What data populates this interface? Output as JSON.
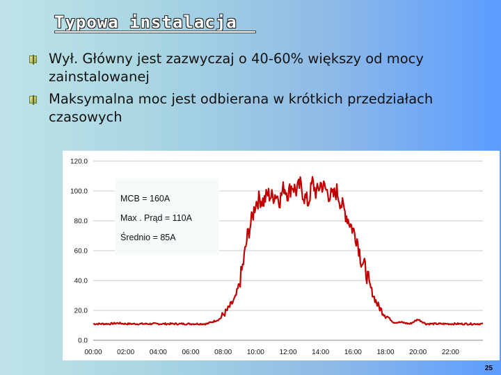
{
  "slide": {
    "title": "Typowa instalacja",
    "bullets": [
      "Wył. Główny jest zazwyczaj o 40-60% większy od mocy zainstalowanej",
      "Maksymalna moc jest odbierana w krótkich przedziałach czasowych"
    ],
    "page_number": "25"
  },
  "chart_data": {
    "type": "line",
    "title": "",
    "xlabel": "",
    "ylabel": "",
    "x_tick_labels": [
      "00:00",
      "02:00",
      "04:00",
      "06:00",
      "08:00",
      "10:00",
      "12:00",
      "14:00",
      "16:00",
      "18:00",
      "20:00",
      "22:00"
    ],
    "y_tick_labels": [
      "0.0",
      "20.0",
      "40.0",
      "60.0",
      "80.0",
      "100.0",
      "120.0"
    ],
    "ylim": [
      0,
      120
    ],
    "xlim_hours": [
      0,
      24
    ],
    "grid": "horizontal",
    "line_color": "#c00000",
    "annotations": [
      "MCB = 160A",
      "Max . Prąd = 110A",
      "Średnio = 85A"
    ],
    "series": [
      {
        "values_hours": [
          0,
          0.5,
          1,
          1.5,
          2,
          2.5,
          3,
          3.5,
          4,
          4.5,
          5,
          5.5,
          6,
          6.5,
          7,
          7.25,
          7.5,
          7.75,
          8,
          8.25,
          8.5,
          8.75,
          9,
          9.25,
          9.5,
          9.75,
          10,
          10.25,
          10.5,
          10.75,
          11,
          11.25,
          11.5,
          11.75,
          12,
          12.25,
          12.5,
          12.75,
          13,
          13.25,
          13.5,
          13.75,
          14,
          14.25,
          14.5,
          14.75,
          15,
          15.25,
          15.5,
          15.75,
          16,
          16.25,
          16.5,
          16.75,
          17,
          17.25,
          17.5,
          17.75,
          18,
          18.5,
          19,
          19.5,
          20,
          20.5,
          21,
          21.5,
          22,
          22.5,
          23,
          23.5,
          24
        ],
        "values": [
          11,
          11,
          11,
          11.5,
          11,
          11,
          11,
          11,
          11,
          11,
          11,
          11,
          11,
          11,
          11,
          12,
          13,
          14,
          17,
          20,
          24,
          28,
          38,
          52,
          70,
          80,
          92,
          95,
          93,
          98,
          96,
          98,
          94,
          103,
          98,
          104,
          100,
          104,
          96,
          92,
          106,
          98,
          105,
          102,
          98,
          96,
          100,
          92,
          86,
          80,
          74,
          68,
          54,
          48,
          38,
          30,
          24,
          20,
          17,
          12,
          12,
          11,
          14,
          11,
          11,
          11,
          11,
          11,
          11,
          11,
          11
        ]
      }
    ]
  }
}
